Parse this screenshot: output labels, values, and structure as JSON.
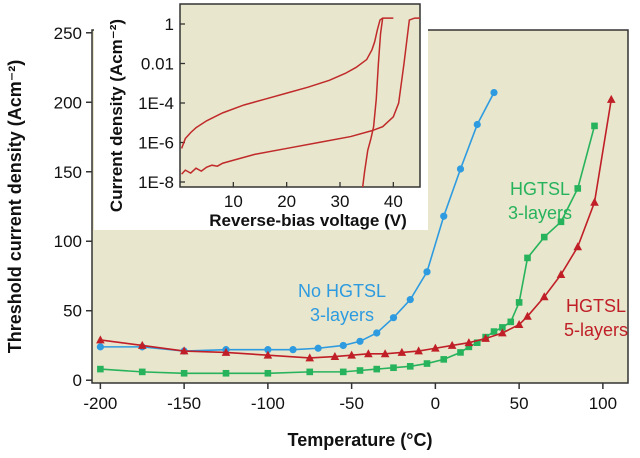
{
  "colors": {
    "plot_bg": "#e8e6cc",
    "axis": "#333333",
    "blue": "#2e9be0",
    "green": "#27b35c",
    "red": "#c01f27",
    "inset_line": "#c02a2a",
    "inset_bg": "#e8e6cc"
  },
  "chart_data": [
    {
      "type": "line",
      "xlabel": "Temperature (°C)",
      "ylabel": "Threshold current density (Acm⁻²)",
      "xlim": [
        -205,
        115
      ],
      "ylim": [
        -2,
        252
      ],
      "x_ticks": [
        -200,
        -150,
        -100,
        -50,
        0,
        50,
        100
      ],
      "y_ticks": [
        0,
        50,
        100,
        150,
        200,
        250
      ],
      "annotations": [
        {
          "lines": [
            "No HGTSL",
            "3-layers"
          ],
          "color": "blue"
        },
        {
          "lines": [
            "HGTSL",
            "3-layers"
          ],
          "color": "green"
        },
        {
          "lines": [
            "HGTSL",
            "5-layers"
          ],
          "color": "red"
        }
      ],
      "series": [
        {
          "color": "blue",
          "marker": "circle",
          "x": [
            -200,
            -175,
            -150,
            -125,
            -100,
            -85,
            -70,
            -55,
            -45,
            -35,
            -25,
            -15,
            -5,
            5,
            15,
            25,
            35
          ],
          "y": [
            24,
            24,
            21,
            22,
            22,
            22,
            23,
            25,
            28,
            34,
            45,
            58,
            78,
            118,
            152,
            184,
            207
          ]
        },
        {
          "color": "green",
          "marker": "square",
          "x": [
            -200,
            -175,
            -150,
            -125,
            -100,
            -75,
            -55,
            -45,
            -35,
            -25,
            -15,
            -5,
            5,
            15,
            20,
            25,
            30,
            35,
            40,
            45,
            50,
            55,
            65,
            75,
            85,
            95
          ],
          "y": [
            8,
            6,
            5,
            5,
            5,
            6,
            6,
            7,
            8,
            9,
            10,
            12,
            15,
            20,
            24,
            27,
            31,
            35,
            38,
            42,
            56,
            88,
            103,
            114,
            138,
            183
          ]
        },
        {
          "color": "red",
          "marker": "triangle",
          "x": [
            -200,
            -175,
            -150,
            -125,
            -100,
            -75,
            -60,
            -50,
            -40,
            -30,
            -20,
            -10,
            0,
            10,
            20,
            30,
            40,
            50,
            55,
            65,
            75,
            85,
            95,
            105
          ],
          "y": [
            29,
            25,
            21,
            20,
            18,
            16,
            17,
            18,
            19,
            19,
            20,
            21,
            23,
            25,
            27,
            30,
            34,
            40,
            46,
            60,
            76,
            96,
            128,
            202
          ]
        }
      ]
    },
    {
      "type": "line",
      "xlabel": "Reverse-bias voltage (V)",
      "ylabel": "Current density (Acm⁻²)",
      "xlim": [
        0,
        45
      ],
      "ylim_log10": [
        -8,
        0
      ],
      "x_ticks": [
        10,
        20,
        30,
        40
      ],
      "y_tick_labels": [
        "1",
        "0.01",
        "1E-4",
        "1E-6",
        "1E-8"
      ],
      "y_tick_exponents": [
        0,
        -2,
        -4,
        -6,
        -8
      ],
      "series": [
        {
          "color": "inset_line",
          "x": [
            0.3,
            1,
            2,
            3,
            5,
            8,
            12,
            16,
            20,
            24,
            28,
            31,
            33,
            35,
            36,
            36.5,
            37,
            37.5,
            38,
            38.5,
            39,
            40
          ],
          "log10_y": [
            -6.3,
            -5.8,
            -5.5,
            -5.25,
            -4.9,
            -4.5,
            -4.1,
            -3.8,
            -3.5,
            -3.2,
            -2.85,
            -2.5,
            -2.2,
            -1.8,
            -1.3,
            -0.9,
            -0.3,
            0.2,
            0.3,
            0.3,
            0.3,
            0.3
          ]
        },
        {
          "color": "inset_line",
          "x": [
            0.3,
            1,
            2,
            3,
            4,
            5,
            6,
            7,
            8,
            10,
            14,
            20,
            26,
            32,
            36,
            38,
            40,
            41,
            42,
            43,
            44,
            45
          ],
          "log10_y": [
            -7.6,
            -7.4,
            -7.55,
            -7.3,
            -7.45,
            -7.25,
            -7.15,
            -7.2,
            -7.05,
            -6.9,
            -6.6,
            -6.3,
            -6.0,
            -5.7,
            -5.4,
            -5.2,
            -4.7,
            -4.0,
            -2.0,
            0.2,
            0.3,
            0.3
          ]
        },
        {
          "color": "inset_line",
          "x": [
            34,
            34.6,
            35.2,
            35.8,
            36.3,
            36.8,
            37.2,
            37.6,
            38
          ],
          "log10_y": [
            -8.8,
            -7.5,
            -6.4,
            -5.8,
            -5.2,
            -3.8,
            -2.0,
            -0.5,
            0.3
          ]
        }
      ]
    }
  ]
}
